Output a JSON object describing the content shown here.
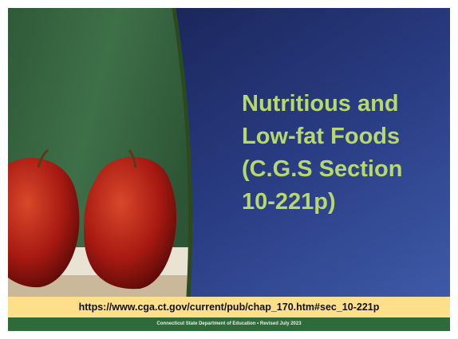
{
  "slide": {
    "title_lines": [
      "Nutritious and",
      "Low-fat Foods",
      "(C.G.S Section",
      "10-221p)"
    ],
    "url": "https://www.cga.ct.gov/current/pub/chap_170.htm#sec_10-221p",
    "footer": "Connecticut State Department of Education • Revised July 2023"
  }
}
